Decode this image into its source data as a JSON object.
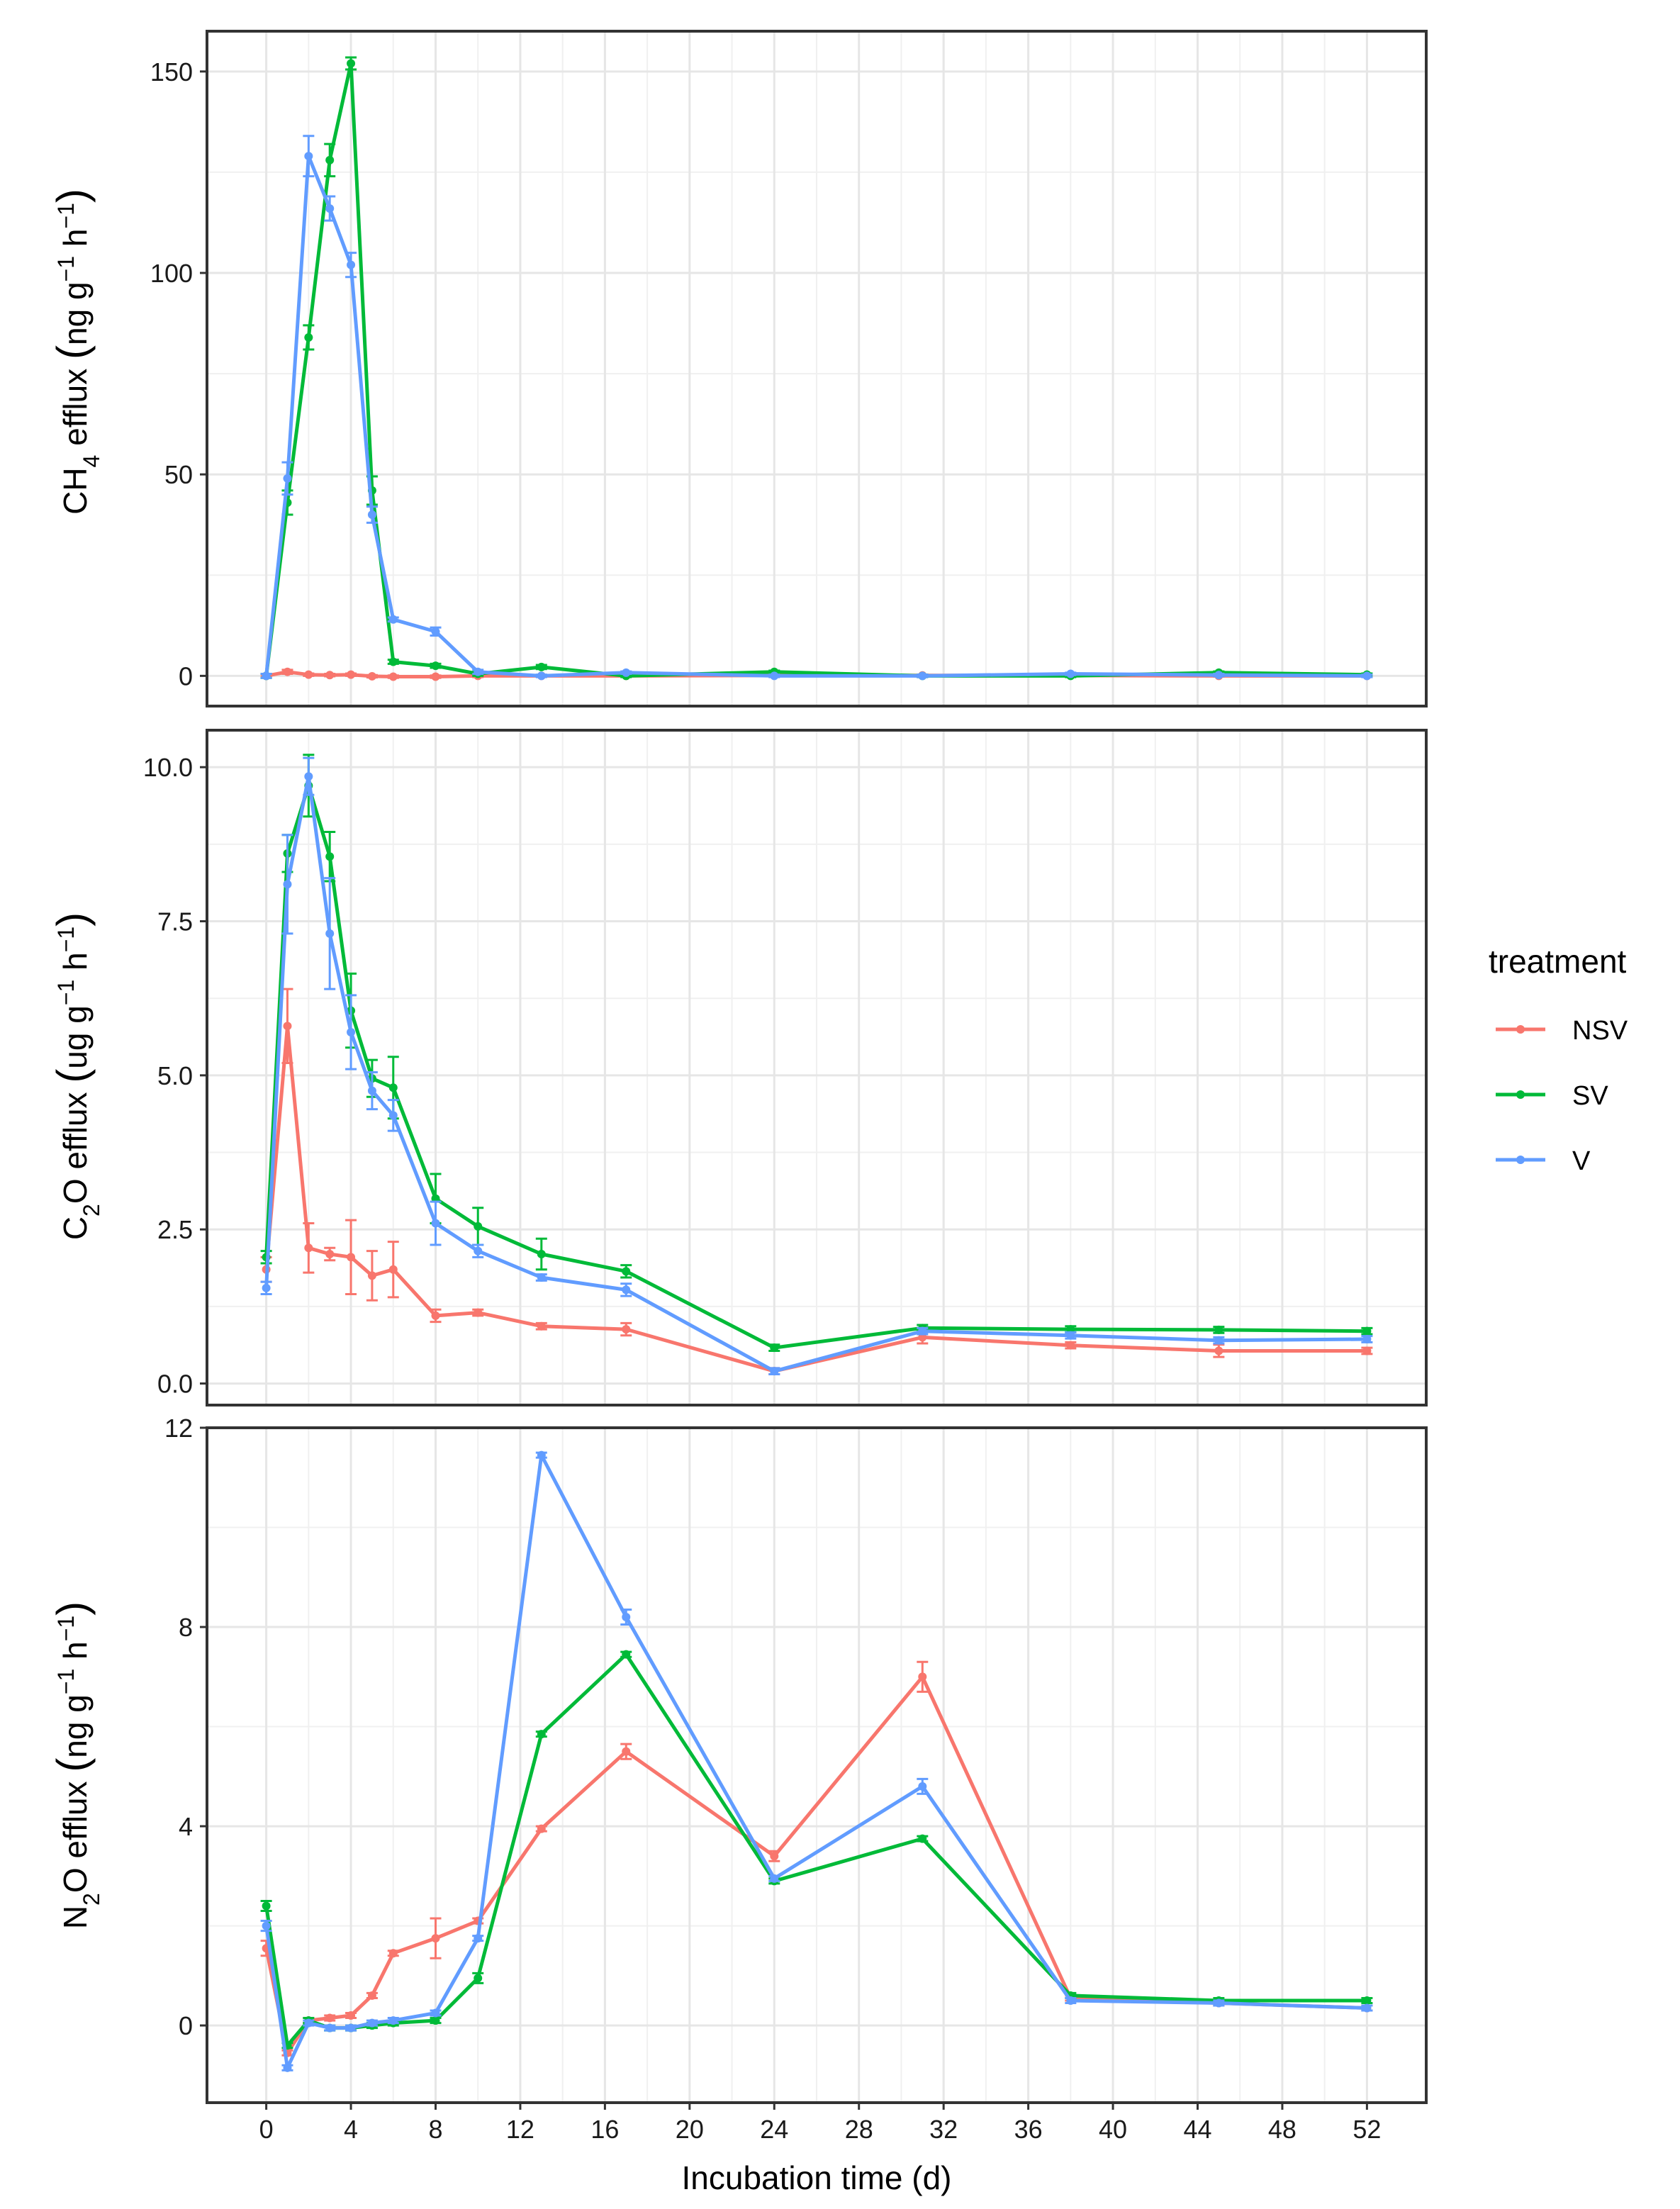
{
  "chart_data": {
    "type": "line",
    "xlabel": "Incubation time (d)",
    "x_ticks": [
      0,
      4,
      8,
      12,
      16,
      20,
      24,
      28,
      32,
      36,
      40,
      44,
      48,
      52
    ],
    "xlim": [
      -2.8,
      54.8
    ],
    "legend": {
      "title": "treatment",
      "position": "right",
      "entries": [
        {
          "name": "NSV",
          "color": "#F8766D"
        },
        {
          "name": "SV",
          "color": "#00BA38"
        },
        {
          "name": "V",
          "color": "#619CFF"
        }
      ]
    },
    "grid": true,
    "panels": [
      {
        "id": "ch4",
        "ylabel": {
          "base": "CH",
          "sub": "4",
          "rest": " efflux ",
          "unit": "ng g",
          "sup1": "−1",
          "mid": " h",
          "sup2": "−1"
        },
        "ylim": [
          -7.5,
          160
        ],
        "y_ticks": [
          "0",
          "50",
          "100",
          "150"
        ],
        "y_tick_values": [
          0,
          50,
          100,
          150
        ],
        "x": [
          0,
          1,
          2,
          3,
          4,
          5,
          6,
          8,
          10,
          13,
          17,
          24,
          31,
          38,
          45,
          52
        ],
        "series": [
          {
            "name": "NSV",
            "values": [
              0,
              1.0,
              0.3,
              0.2,
              0.3,
              -0.1,
              -0.2,
              -0.2,
              0,
              0,
              0,
              0.1,
              0.1,
              0.1,
              0,
              0
            ],
            "errors": [
              0.3,
              0.5,
              0.3,
              0.3,
              0.3,
              0.3,
              0.3,
              0.3,
              0.3,
              0.2,
              0.2,
              0.2,
              0.2,
              0.2,
              0.2,
              0.2
            ]
          },
          {
            "name": "SV",
            "values": [
              0,
              43,
              84,
              128,
              152,
              46,
              3.5,
              2.5,
              0.5,
              2.2,
              0,
              1.0,
              0,
              0,
              0.8,
              0.3
            ],
            "errors": [
              0.5,
              3,
              3,
              4,
              1.5,
              3.5,
              0.5,
              0.5,
              0.5,
              0.5,
              0.3,
              0.3,
              0.3,
              0.3,
              0.3,
              0.3
            ]
          },
          {
            "name": "V",
            "values": [
              0,
              49,
              129,
              116,
              102,
              40,
              14,
              11,
              1.0,
              0,
              0.8,
              0,
              0,
              0.5,
              0.2,
              0
            ],
            "errors": [
              0.5,
              4,
              5,
              3,
              3,
              2,
              0.5,
              1,
              0.5,
              0.3,
              0.3,
              0.3,
              0.3,
              0.3,
              0.3,
              0.3
            ]
          }
        ]
      },
      {
        "id": "c2o",
        "ylabel": {
          "base": "C",
          "sub": "2",
          "rest": "O efflux ",
          "unit": "ug g",
          "sup1": "−1",
          "mid": " h",
          "sup2": "−1"
        },
        "ylim": [
          -0.35,
          10.6
        ],
        "y_ticks": [
          "0.0",
          "2.5",
          "5.0",
          "7.5",
          "10.0"
        ],
        "y_tick_values": [
          0,
          2.5,
          5,
          7.5,
          10
        ],
        "x": [
          0,
          1,
          2,
          3,
          4,
          5,
          6,
          8,
          10,
          13,
          17,
          24,
          31,
          38,
          45,
          52
        ],
        "series": [
          {
            "name": "NSV",
            "values": [
              1.85,
              5.8,
              2.2,
              2.1,
              2.05,
              1.75,
              1.85,
              1.1,
              1.15,
              0.93,
              0.88,
              0.2,
              0.75,
              0.62,
              0.53,
              0.53
            ],
            "errors": [
              0.2,
              0.6,
              0.4,
              0.1,
              0.6,
              0.4,
              0.45,
              0.1,
              0.05,
              0.05,
              0.1,
              0.05,
              0.1,
              0.05,
              0.1,
              0.05
            ]
          },
          {
            "name": "SV",
            "values": [
              2.05,
              8.6,
              9.7,
              8.55,
              6.05,
              4.95,
              4.8,
              3.0,
              2.55,
              2.1,
              1.82,
              0.58,
              0.9,
              0.88,
              0.87,
              0.85
            ],
            "errors": [
              0.1,
              0.3,
              0.5,
              0.4,
              0.6,
              0.3,
              0.5,
              0.4,
              0.3,
              0.25,
              0.1,
              0.05,
              0.05,
              0.05,
              0.05,
              0.05
            ]
          },
          {
            "name": "V",
            "values": [
              1.55,
              8.1,
              9.85,
              7.3,
              5.7,
              4.75,
              4.35,
              2.6,
              2.15,
              1.72,
              1.52,
              0.2,
              0.85,
              0.78,
              0.7,
              0.72
            ],
            "errors": [
              0.1,
              0.8,
              0.3,
              0.9,
              0.6,
              0.3,
              0.25,
              0.35,
              0.1,
              0.05,
              0.1,
              0.05,
              0.05,
              0.05,
              0.05,
              0.05
            ]
          }
        ]
      },
      {
        "id": "n2o",
        "ylabel": {
          "base": "N",
          "sub": "2",
          "rest": "O efflux ",
          "unit": "ng g",
          "sup1": "−1",
          "mid": " h",
          "sup2": "−1"
        },
        "ylim": [
          -1.55,
          12.0
        ],
        "y_ticks": [
          "0",
          "4",
          "8",
          "12"
        ],
        "y_tick_values": [
          0,
          4,
          8,
          12
        ],
        "x": [
          0,
          1,
          2,
          3,
          4,
          5,
          6,
          8,
          10,
          13,
          17,
          24,
          31,
          38,
          45,
          52
        ],
        "series": [
          {
            "name": "NSV",
            "values": [
              1.55,
              -0.55,
              0.1,
              0.15,
              0.2,
              0.6,
              1.45,
              1.75,
              2.1,
              3.95,
              5.5,
              3.4,
              7.0,
              0.55,
              0.45,
              0.35
            ],
            "errors": [
              0.15,
              0.05,
              0.05,
              0.05,
              0.05,
              0.05,
              0.05,
              0.4,
              0.05,
              0.05,
              0.15,
              0.1,
              0.3,
              0.05,
              0.05,
              0.05
            ]
          },
          {
            "name": "SV",
            "values": [
              2.4,
              -0.4,
              0.1,
              -0.05,
              -0.05,
              0,
              0.05,
              0.1,
              0.95,
              5.85,
              7.45,
              2.9,
              3.75,
              0.6,
              0.5,
              0.5
            ],
            "errors": [
              0.1,
              0.05,
              0.05,
              0.05,
              0.05,
              0.05,
              0.05,
              0.05,
              0.1,
              0.05,
              0.05,
              0.05,
              0.05,
              0.05,
              0.05,
              0.05
            ]
          },
          {
            "name": "V",
            "values": [
              2.0,
              -0.85,
              0.05,
              -0.05,
              -0.05,
              0.05,
              0.1,
              0.25,
              1.75,
              11.45,
              8.2,
              2.95,
              4.8,
              0.5,
              0.45,
              0.35
            ],
            "errors": [
              0.1,
              0.05,
              0.05,
              0.05,
              0.05,
              0.05,
              0.05,
              0.05,
              0.05,
              0.05,
              0.15,
              0.05,
              0.15,
              0.05,
              0.05,
              0.05
            ]
          }
        ]
      }
    ]
  }
}
